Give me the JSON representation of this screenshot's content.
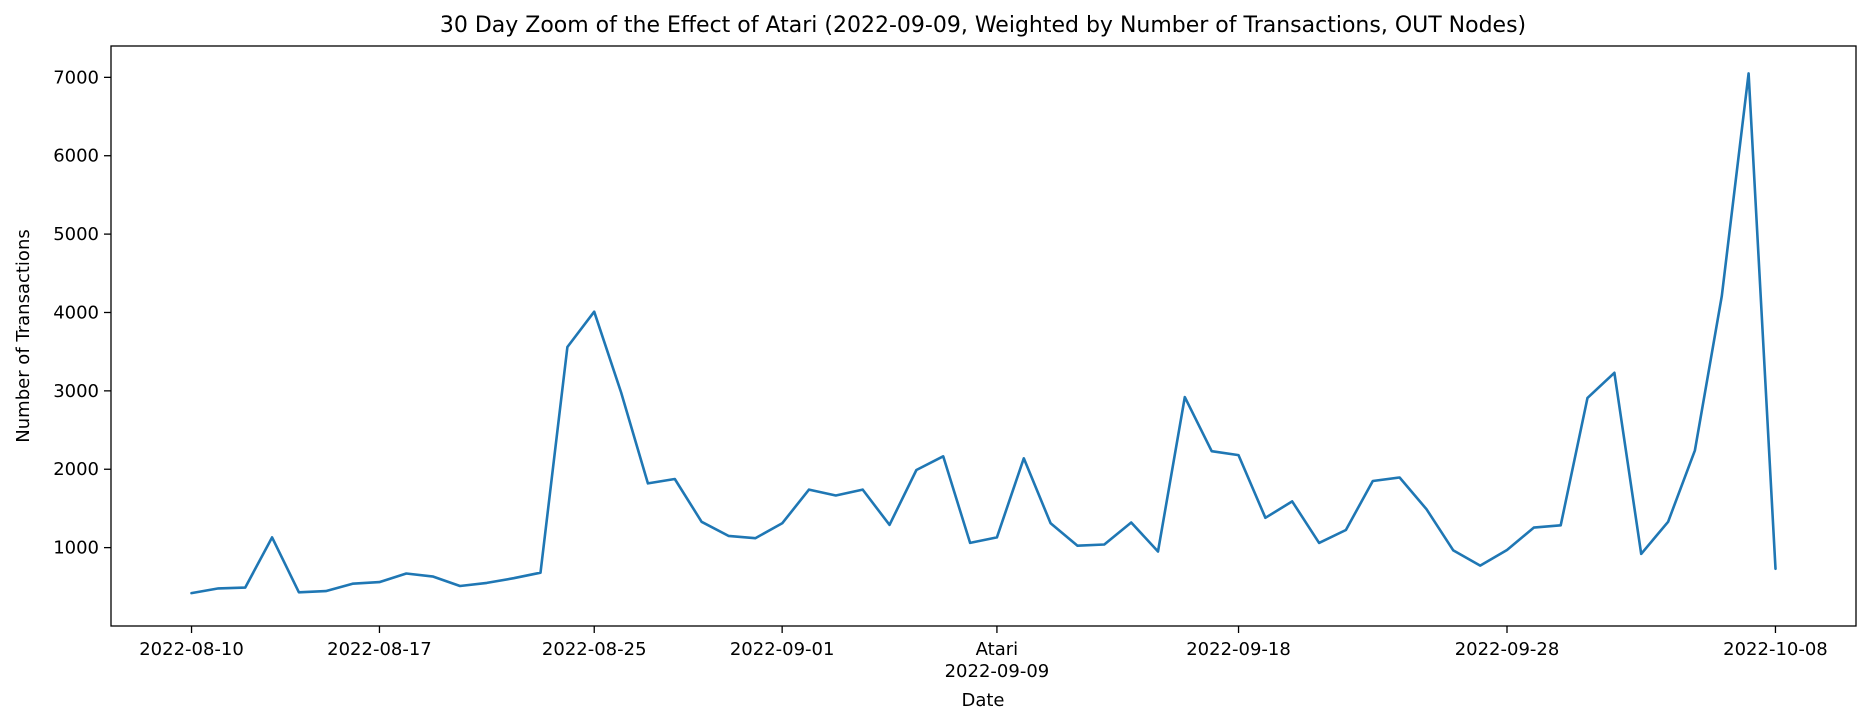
{
  "chart_data": {
    "type": "line",
    "title": "30 Day Zoom of the Effect of Atari (2022-09-09, Weighted by Number of Transactions, OUT Nodes)",
    "xlabel": "Date",
    "ylabel": "Number of Transactions",
    "xlim": [
      "2022-08-07",
      "2022-10-11"
    ],
    "ylim": [
      0,
      7400
    ],
    "x_ticks": [
      {
        "date": "2022-08-10",
        "label": "2022-08-10"
      },
      {
        "date": "2022-08-17",
        "label": "2022-08-17"
      },
      {
        "date": "2022-08-25",
        "label": "2022-08-25"
      },
      {
        "date": "2022-09-01",
        "label": "2022-09-01"
      },
      {
        "date": "2022-09-09",
        "label": "Atari\n2022-09-09"
      },
      {
        "date": "2022-09-18",
        "label": "2022-09-18"
      },
      {
        "date": "2022-09-28",
        "label": "2022-09-28"
      },
      {
        "date": "2022-10-08",
        "label": "2022-10-08"
      }
    ],
    "y_ticks": [
      1000,
      2000,
      3000,
      4000,
      5000,
      6000,
      7000
    ],
    "grid": false,
    "color": "#1f77b4",
    "series": [
      {
        "x": [
          "2022-08-10",
          "2022-08-11",
          "2022-08-12",
          "2022-08-13",
          "2022-08-14",
          "2022-08-15",
          "2022-08-16",
          "2022-08-17",
          "2022-08-18",
          "2022-08-19",
          "2022-08-20",
          "2022-08-21",
          "2022-08-22",
          "2022-08-23",
          "2022-08-24",
          "2022-08-25",
          "2022-08-26",
          "2022-08-27",
          "2022-08-28",
          "2022-08-29",
          "2022-08-30",
          "2022-08-31",
          "2022-09-01",
          "2022-09-02",
          "2022-09-03",
          "2022-09-04",
          "2022-09-05",
          "2022-09-06",
          "2022-09-07",
          "2022-09-08",
          "2022-09-09",
          "2022-09-10",
          "2022-09-11",
          "2022-09-12",
          "2022-09-13",
          "2022-09-14",
          "2022-09-15",
          "2022-09-16",
          "2022-09-17",
          "2022-09-18",
          "2022-09-19",
          "2022-09-20",
          "2022-09-21",
          "2022-09-22",
          "2022-09-23",
          "2022-09-24",
          "2022-09-25",
          "2022-09-26",
          "2022-09-27",
          "2022-09-28",
          "2022-09-29",
          "2022-09-30",
          "2022-10-01",
          "2022-10-02",
          "2022-10-03",
          "2022-10-04",
          "2022-10-05",
          "2022-10-06",
          "2022-10-07",
          "2022-10-08"
        ],
        "values": [
          420,
          480,
          490,
          1130,
          430,
          445,
          540,
          560,
          670,
          630,
          510,
          550,
          610,
          680,
          3560,
          4010,
          2980,
          1820,
          1875,
          1330,
          1150,
          1120,
          1310,
          1740,
          1665,
          1740,
          1290,
          1990,
          2165,
          1060,
          1130,
          2140,
          1310,
          1025,
          1040,
          1320,
          950,
          2920,
          2230,
          2180,
          1380,
          1590,
          1060,
          1225,
          1850,
          1895,
          1490,
          965,
          770,
          970,
          1255,
          1285,
          2910,
          3230,
          920,
          1330,
          2240,
          4210,
          7050,
          730
        ]
      }
    ]
  }
}
